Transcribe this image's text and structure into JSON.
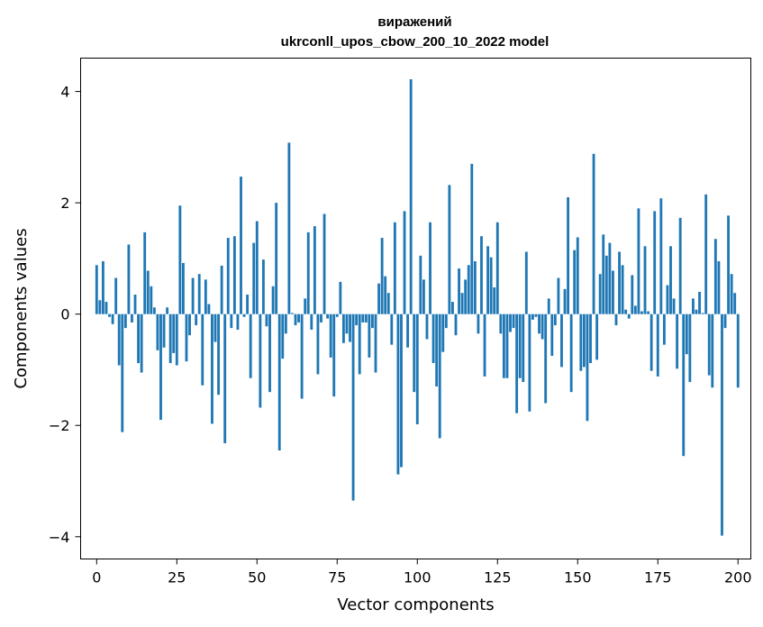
{
  "chart_data": {
    "type": "bar",
    "title": "виражений\nukrconll_upos_cbow_200_10_2022 model",
    "xlabel": "Vector components",
    "ylabel": "Components values",
    "xlim": [
      -5,
      204
    ],
    "ylim": [
      -4.4,
      4.6
    ],
    "xticks": [
      0,
      25,
      50,
      75,
      100,
      125,
      150,
      175,
      200
    ],
    "yticks": [
      -4,
      -2,
      0,
      2,
      4
    ],
    "ytick_labels": [
      "−4",
      "−2",
      "0",
      "2",
      "4"
    ],
    "bar_color": "#1f77b4",
    "values": [
      0.88,
      0.25,
      0.95,
      0.22,
      -0.05,
      -0.18,
      0.65,
      -0.92,
      -2.12,
      -0.25,
      1.25,
      -0.15,
      0.35,
      -0.88,
      -1.05,
      1.47,
      0.78,
      0.5,
      0.12,
      -0.65,
      -1.9,
      -0.6,
      0.12,
      -0.88,
      -0.7,
      -0.92,
      1.95,
      0.92,
      -0.85,
      -0.38,
      0.65,
      -0.2,
      0.72,
      -1.28,
      0.62,
      0.18,
      -1.97,
      -0.5,
      -1.45,
      0.87,
      -2.32,
      1.37,
      -0.25,
      1.4,
      -0.28,
      2.47,
      -0.05,
      0.35,
      -1.15,
      1.28,
      1.67,
      -1.68,
      0.98,
      -0.22,
      -1.4,
      0.5,
      2.0,
      -2.45,
      -0.8,
      -0.35,
      3.08,
      0.02,
      -0.2,
      -0.15,
      -1.52,
      0.28,
      1.47,
      -0.28,
      1.58,
      -1.08,
      -0.15,
      1.8,
      -0.08,
      -0.78,
      -1.48,
      -0.05,
      0.58,
      -0.52,
      -0.35,
      -0.5,
      -3.35,
      -0.2,
      -1.08,
      -0.15,
      -0.15,
      -0.78,
      -0.25,
      -1.05,
      0.55,
      1.37,
      0.68,
      0.38,
      -0.55,
      1.65,
      -2.88,
      -2.75,
      1.85,
      -0.6,
      4.22,
      -1.4,
      -1.98,
      1.05,
      0.62,
      -0.45,
      1.65,
      -0.88,
      -1.3,
      -2.23,
      -0.68,
      -0.25,
      2.32,
      0.22,
      -0.38,
      0.82,
      0.38,
      0.62,
      0.88,
      2.7,
      0.95,
      -0.35,
      1.4,
      -1.12,
      1.22,
      1.02,
      0.48,
      1.65,
      -0.35,
      -1.15,
      -1.15,
      -0.32,
      -0.25,
      -1.78,
      -1.15,
      -1.22,
      1.12,
      -1.75,
      -0.1,
      -0.05,
      -0.35,
      -0.45,
      -1.6,
      0.28,
      -0.75,
      -0.2,
      0.65,
      -0.95,
      0.45,
      2.1,
      -1.4,
      1.15,
      1.38,
      -1.02,
      -0.95,
      -1.92,
      -0.88,
      2.88,
      -0.82,
      0.72,
      1.43,
      1.05,
      1.28,
      0.78,
      -0.2,
      1.12,
      0.88,
      0.08,
      -0.08,
      0.7,
      0.15,
      1.9,
      0.05,
      1.22,
      0.05,
      -1.02,
      1.85,
      -1.12,
      2.08,
      -0.55,
      0.52,
      1.22,
      0.28,
      -0.98,
      1.73,
      -2.55,
      -0.72,
      -1.22,
      0.28,
      0.08,
      0.4,
      0.02,
      2.15,
      -1.1,
      -1.32,
      1.35,
      0.95,
      -3.98,
      -0.25,
      1.77,
      0.72,
      0.38,
      -1.32
    ]
  }
}
